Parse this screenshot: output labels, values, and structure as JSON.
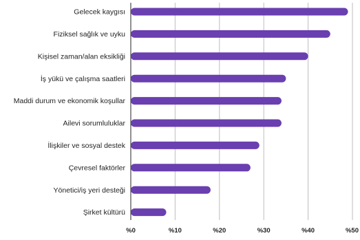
{
  "chart_data": {
    "type": "bar",
    "orientation": "horizontal",
    "categories": [
      "Gelecek kaygısı",
      "Fiziksel sağlık ve uyku",
      "Kişisel zaman/alan eksikliği",
      "İş yükü ve çalışma saatleri",
      "Maddi durum ve ekonomik koşullar",
      "Ailevi sorumluluklar",
      "İlişkiler ve sosyal destek",
      "Çevresel faktörler",
      "Yönetici/iş yeri desteği",
      "Şirket kültürü"
    ],
    "values": [
      49,
      45,
      40,
      35,
      34,
      34,
      29,
      27,
      18,
      8
    ],
    "xlim": [
      0,
      50
    ],
    "ticks": [
      "%0",
      "%10",
      "%20",
      "%30",
      "%40",
      "%50"
    ],
    "grid": true,
    "colors": {
      "bar": "#6a3fb0"
    }
  }
}
